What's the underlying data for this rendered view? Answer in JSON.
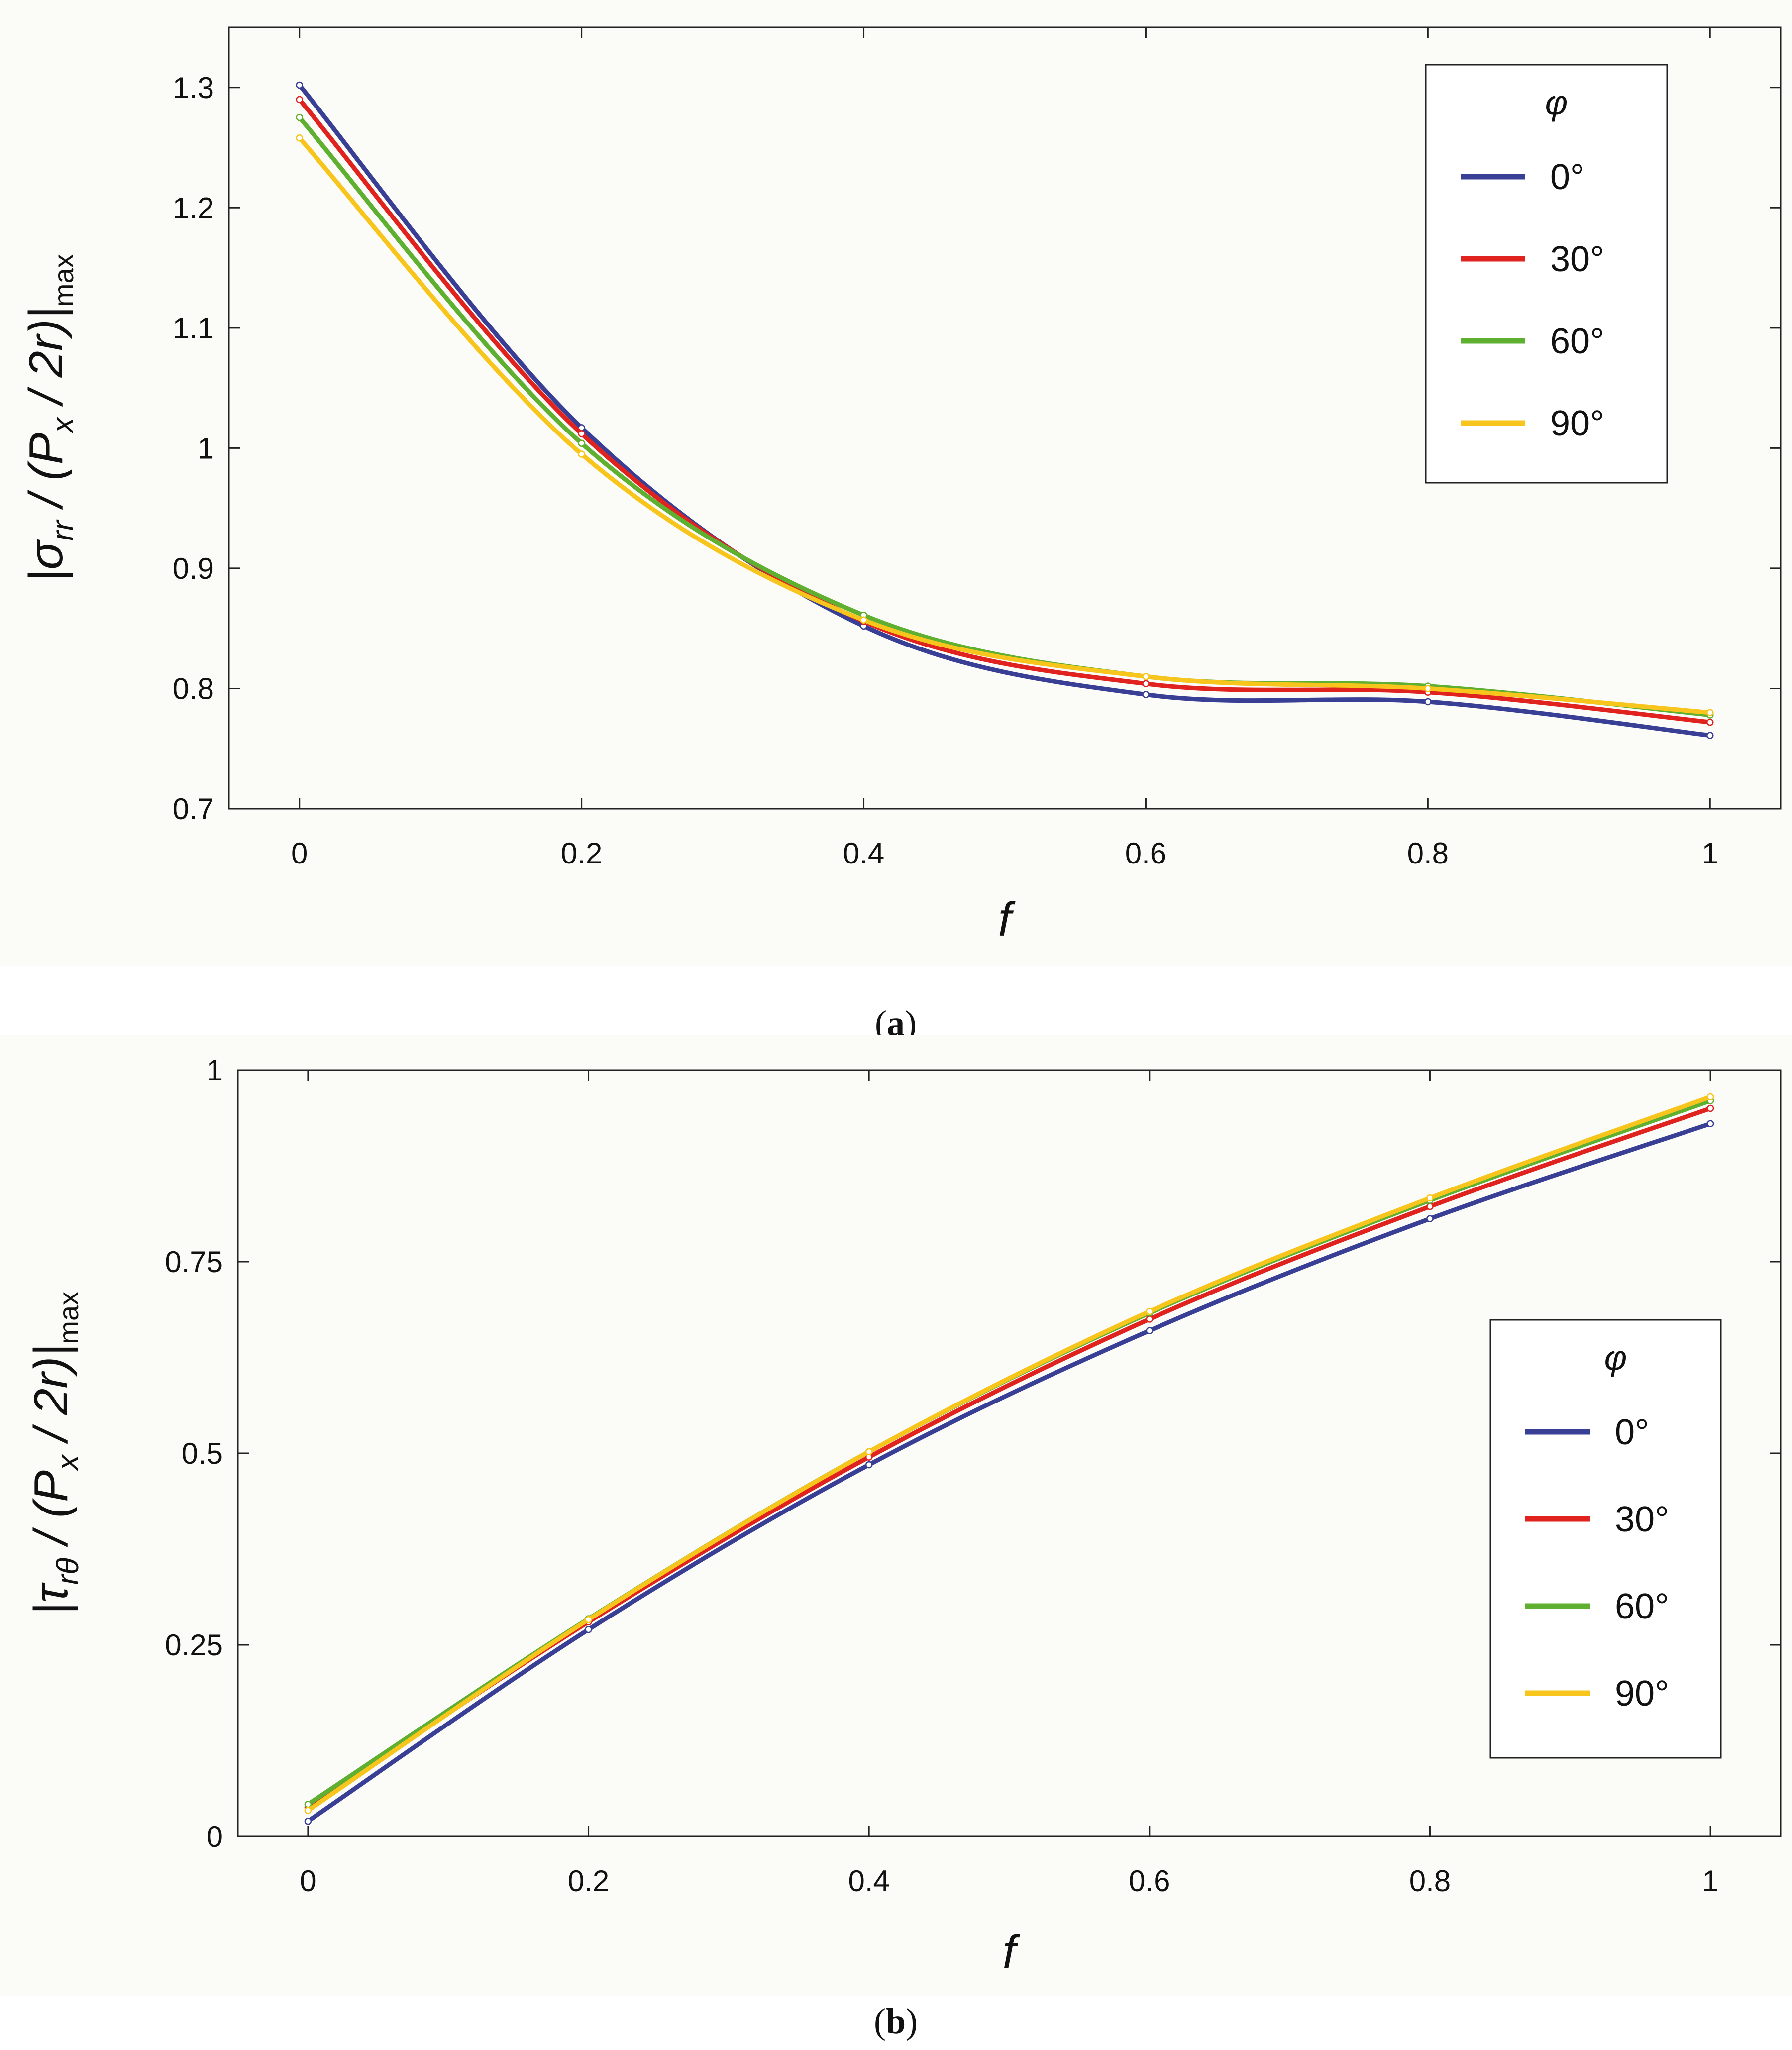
{
  "colors": {
    "phi_0": "#3a3f96",
    "phi_30": "#e0231f",
    "phi_60": "#5fb030",
    "phi_90": "#f7c51c"
  },
  "chart_data": [
    {
      "type": "line",
      "caption_letter": "a",
      "xlabel": "f",
      "ylabel": "|σrr / (Px / 2r)|max",
      "ylabel_parts": {
        "open": "|σ",
        "sub1": "rr",
        "mid": " / (P",
        "sub2": "x",
        "close": " / 2r)|",
        "sub3": "max"
      },
      "x": [
        0,
        0.2,
        0.4,
        0.6,
        0.8,
        1
      ],
      "xlim": [
        -0.05,
        1.05
      ],
      "ylim": [
        0.7,
        1.35
      ],
      "xticks": [
        0,
        0.2,
        0.4,
        0.6,
        0.8,
        1
      ],
      "xtick_labels": [
        "0",
        "0.2",
        "0.4",
        "0.6",
        "0.8",
        "1"
      ],
      "yticks": [
        0.7,
        0.8,
        0.9,
        1,
        1.1,
        1.2,
        1.3
      ],
      "ytick_labels": [
        "0.7",
        "0.8",
        "0.9",
        "1",
        "1.1",
        "1.2",
        "1.3"
      ],
      "legend_title": "φ",
      "legend_position": "top-right",
      "series": [
        {
          "name": "0°",
          "color_key": "phi_0",
          "values": [
            1.302,
            1.017,
            0.852,
            0.795,
            0.789,
            0.761
          ]
        },
        {
          "name": "30°",
          "color_key": "phi_30",
          "values": [
            1.29,
            1.012,
            0.856,
            0.804,
            0.797,
            0.772
          ]
        },
        {
          "name": "60°",
          "color_key": "phi_60",
          "values": [
            1.275,
            1.004,
            0.861,
            0.81,
            0.802,
            0.778
          ]
        },
        {
          "name": "90°",
          "color_key": "phi_90",
          "values": [
            1.258,
            0.995,
            0.857,
            0.81,
            0.8,
            0.78
          ]
        }
      ]
    },
    {
      "type": "line",
      "caption_letter": "b",
      "xlabel": "f",
      "ylabel": "|τrθ / (Px / 2r)|max",
      "ylabel_parts": {
        "open": "|τ",
        "sub1": "rθ",
        "mid": " / (P",
        "sub2": "x",
        "close": " / 2r)|",
        "sub3": "max"
      },
      "x": [
        0,
        0.2,
        0.4,
        0.6,
        0.8,
        1
      ],
      "xlim": [
        -0.05,
        1.05
      ],
      "ylim": [
        0,
        1
      ],
      "xticks": [
        0,
        0.2,
        0.4,
        0.6,
        0.8,
        1
      ],
      "xtick_labels": [
        "0",
        "0.2",
        "0.4",
        "0.6",
        "0.8",
        "1"
      ],
      "yticks": [
        0,
        0.25,
        0.5,
        0.75,
        1
      ],
      "ytick_labels": [
        "0",
        "0.25",
        "0.5",
        "0.75",
        "1"
      ],
      "legend_title": "φ",
      "legend_position": "center-right",
      "series": [
        {
          "name": "0°",
          "color_key": "phi_0",
          "values": [
            0.02,
            0.27,
            0.485,
            0.66,
            0.806,
            0.93
          ]
        },
        {
          "name": "30°",
          "color_key": "phi_30",
          "values": [
            0.038,
            0.28,
            0.495,
            0.675,
            0.822,
            0.95
          ]
        },
        {
          "name": "60°",
          "color_key": "phi_60",
          "values": [
            0.042,
            0.284,
            0.502,
            0.683,
            0.83,
            0.96
          ]
        },
        {
          "name": "90°",
          "color_key": "phi_90",
          "values": [
            0.034,
            0.283,
            0.502,
            0.685,
            0.833,
            0.965
          ]
        }
      ]
    }
  ]
}
